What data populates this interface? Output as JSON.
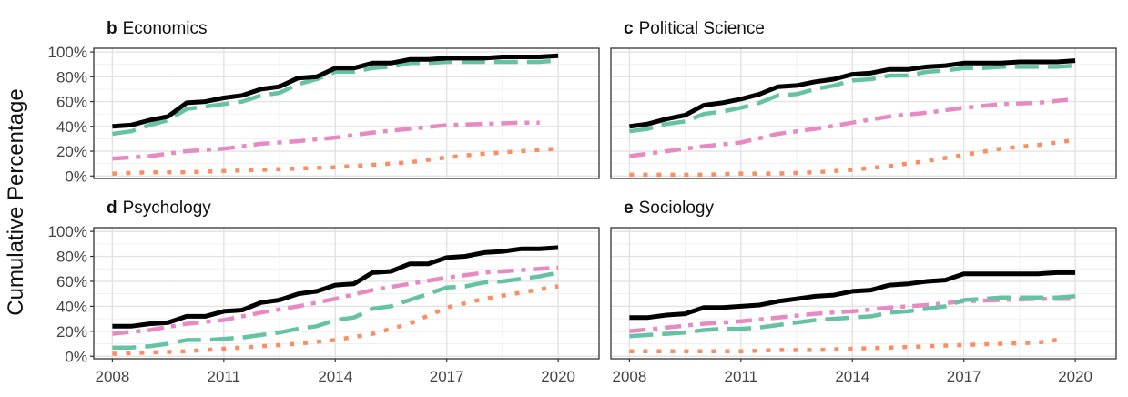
{
  "figure": {
    "ylabel": "Cumulative Percentage"
  },
  "series_styles": [
    {
      "key": "s1",
      "color": "#000000",
      "dash": "none"
    },
    {
      "key": "s2",
      "color": "#66c2a5",
      "dash": "26 10"
    },
    {
      "key": "s3",
      "color": "#e78ac3",
      "dash": "18 8 5 8"
    },
    {
      "key": "s4",
      "color": "#fc8d62",
      "dash": "5 10"
    }
  ],
  "chart_data": [
    {
      "type": "line",
      "letter": "b",
      "title": "Economics",
      "xlim": [
        2007.5,
        2021.1
      ],
      "ylim": [
        -2,
        103
      ],
      "xticks": [
        2008,
        2011,
        2014,
        2017,
        2020
      ],
      "xtick_labels": [
        "2008",
        "2011",
        "2014",
        "2017",
        "2020"
      ],
      "yticks": [
        0,
        20,
        40,
        60,
        80,
        100
      ],
      "ytick_labels": [
        "0%",
        "20%",
        "40%",
        "60%",
        "80%",
        "100%"
      ],
      "series": [
        {
          "x": [
            2008,
            2008.5,
            2009,
            2009.5,
            2010,
            2010.5,
            2011,
            2011.5,
            2012,
            2012.5,
            2013,
            2013.5,
            2014,
            2014.5,
            2015,
            2015.5,
            2016,
            2016.5,
            2017,
            2017.5,
            2018,
            2018.5,
            2019,
            2019.5,
            2020
          ],
          "y": [
            40,
            41,
            45,
            48,
            59,
            60,
            63,
            65,
            70,
            72,
            79,
            80,
            87,
            87,
            91,
            91,
            94,
            94,
            95,
            95,
            95,
            96,
            96,
            96,
            97
          ]
        },
        {
          "x": [
            2008,
            2008.5,
            2009,
            2009.5,
            2010,
            2010.5,
            2011,
            2011.5,
            2012,
            2012.5,
            2013,
            2013.5,
            2014,
            2014.5,
            2015,
            2015.5,
            2016,
            2016.5,
            2017,
            2017.5,
            2018,
            2018.5,
            2019,
            2019.5,
            2020
          ],
          "y": [
            34,
            36,
            41,
            45,
            54,
            56,
            58,
            60,
            65,
            67,
            74,
            78,
            84,
            84,
            87,
            88,
            91,
            91,
            92,
            92,
            92,
            92,
            92,
            92,
            93
          ]
        },
        {
          "x": [
            2008,
            2009,
            2010,
            2011,
            2012,
            2013,
            2014,
            2015,
            2016,
            2017,
            2018,
            2019,
            2019.5
          ],
          "y": [
            14,
            16,
            20,
            22,
            26,
            28,
            31,
            35,
            38,
            41,
            42,
            43,
            43
          ]
        },
        {
          "x": [
            2008,
            2009,
            2010,
            2011,
            2012,
            2013,
            2014,
            2015,
            2016,
            2017,
            2018,
            2019,
            2020
          ],
          "y": [
            2,
            3,
            3,
            4,
            5,
            6,
            7,
            9,
            11,
            15,
            18,
            20,
            22
          ]
        }
      ]
    },
    {
      "type": "line",
      "letter": "c",
      "title": "Political Science",
      "xlim": [
        2007.5,
        2021.1
      ],
      "ylim": [
        -2,
        103
      ],
      "xticks": [
        2008,
        2011,
        2014,
        2017,
        2020
      ],
      "xtick_labels": [
        "2008",
        "2011",
        "2014",
        "2017",
        "2020"
      ],
      "yticks": [
        0,
        20,
        40,
        60,
        80,
        100
      ],
      "ytick_labels": [
        "0%",
        "20%",
        "40%",
        "60%",
        "80%",
        "100%"
      ],
      "series": [
        {
          "x": [
            2008,
            2008.5,
            2009,
            2009.5,
            2010,
            2010.5,
            2011,
            2011.5,
            2012,
            2012.5,
            2013,
            2013.5,
            2014,
            2014.5,
            2015,
            2015.5,
            2016,
            2016.5,
            2017,
            2017.5,
            2018,
            2018.5,
            2019,
            2019.5,
            2020
          ],
          "y": [
            40,
            42,
            46,
            49,
            57,
            59,
            62,
            66,
            72,
            73,
            76,
            78,
            82,
            83,
            86,
            86,
            88,
            89,
            91,
            91,
            91,
            92,
            92,
            92,
            93
          ]
        },
        {
          "x": [
            2008,
            2008.5,
            2009,
            2009.5,
            2010,
            2010.5,
            2011,
            2011.5,
            2012,
            2012.5,
            2013,
            2013.5,
            2014,
            2014.5,
            2015,
            2015.5,
            2016,
            2016.5,
            2017,
            2017.5,
            2018,
            2018.5,
            2019,
            2019.5,
            2020
          ],
          "y": [
            36,
            38,
            42,
            44,
            50,
            52,
            55,
            59,
            65,
            66,
            70,
            73,
            77,
            78,
            81,
            81,
            84,
            85,
            87,
            87,
            88,
            88,
            88,
            88,
            89
          ]
        },
        {
          "x": [
            2008,
            2009,
            2010,
            2011,
            2012,
            2013,
            2014,
            2015,
            2016,
            2017,
            2018,
            2019,
            2020
          ],
          "y": [
            16,
            20,
            24,
            27,
            34,
            38,
            43,
            48,
            51,
            55,
            58,
            59,
            62
          ]
        },
        {
          "x": [
            2008,
            2009,
            2010,
            2011,
            2012,
            2013,
            2014,
            2015,
            2016,
            2017,
            2018,
            2019,
            2020
          ],
          "y": [
            1,
            1,
            1,
            2,
            2,
            3,
            5,
            8,
            12,
            17,
            22,
            25,
            29
          ]
        }
      ]
    },
    {
      "type": "line",
      "letter": "d",
      "title": "Psychology",
      "xlim": [
        2007.5,
        2021.1
      ],
      "ylim": [
        -2,
        103
      ],
      "xticks": [
        2008,
        2011,
        2014,
        2017,
        2020
      ],
      "xtick_labels": [
        "2008",
        "2011",
        "2014",
        "2017",
        "2020"
      ],
      "yticks": [
        0,
        20,
        40,
        60,
        80,
        100
      ],
      "ytick_labels": [
        "0%",
        "20%",
        "40%",
        "60%",
        "80%",
        "100%"
      ],
      "series": [
        {
          "x": [
            2008,
            2008.5,
            2009,
            2009.5,
            2010,
            2010.5,
            2011,
            2011.5,
            2012,
            2012.5,
            2013,
            2013.5,
            2014,
            2014.5,
            2015,
            2015.5,
            2016,
            2016.5,
            2017,
            2017.5,
            2018,
            2018.5,
            2019,
            2019.5,
            2020
          ],
          "y": [
            24,
            24,
            26,
            27,
            32,
            32,
            36,
            37,
            43,
            45,
            50,
            52,
            57,
            58,
            67,
            68,
            74,
            74,
            79,
            80,
            83,
            84,
            86,
            86,
            87
          ]
        },
        {
          "x": [
            2008,
            2008.5,
            2009,
            2009.5,
            2010,
            2010.5,
            2011,
            2011.5,
            2012,
            2012.5,
            2013,
            2013.5,
            2014,
            2014.5,
            2015,
            2015.5,
            2016,
            2016.5,
            2017,
            2017.5,
            2018,
            2018.5,
            2019,
            2019.5,
            2020
          ],
          "y": [
            7,
            7,
            8,
            10,
            13,
            13,
            14,
            15,
            17,
            19,
            22,
            24,
            29,
            31,
            38,
            40,
            45,
            50,
            55,
            56,
            59,
            60,
            62,
            64,
            67
          ]
        },
        {
          "x": [
            2008,
            2009,
            2010,
            2011,
            2012,
            2013,
            2014,
            2015,
            2016,
            2017,
            2018,
            2019,
            2020
          ],
          "y": [
            18,
            21,
            26,
            29,
            35,
            40,
            46,
            53,
            58,
            63,
            67,
            69,
            71
          ]
        },
        {
          "x": [
            2008,
            2009,
            2010,
            2011,
            2012,
            2013,
            2014,
            2015,
            2016,
            2017,
            2018,
            2019,
            2020
          ],
          "y": [
            2,
            3,
            4,
            6,
            8,
            10,
            13,
            18,
            26,
            39,
            46,
            51,
            56
          ]
        }
      ]
    },
    {
      "type": "line",
      "letter": "e",
      "title": "Sociology",
      "xlim": [
        2007.5,
        2021.1
      ],
      "ylim": [
        -2,
        103
      ],
      "xticks": [
        2008,
        2011,
        2014,
        2017,
        2020
      ],
      "xtick_labels": [
        "2008",
        "2011",
        "2014",
        "2017",
        "2020"
      ],
      "yticks": [
        0,
        20,
        40,
        60,
        80,
        100
      ],
      "ytick_labels": [
        "0%",
        "20%",
        "40%",
        "60%",
        "80%",
        "100%"
      ],
      "series": [
        {
          "x": [
            2008,
            2008.5,
            2009,
            2009.5,
            2010,
            2010.5,
            2011,
            2011.5,
            2012,
            2012.5,
            2013,
            2013.5,
            2014,
            2014.5,
            2015,
            2015.5,
            2016,
            2016.5,
            2017,
            2017.5,
            2018,
            2018.5,
            2019,
            2019.5,
            2020
          ],
          "y": [
            31,
            31,
            33,
            34,
            39,
            39,
            40,
            41,
            44,
            46,
            48,
            49,
            52,
            53,
            57,
            58,
            60,
            61,
            66,
            66,
            66,
            66,
            66,
            67,
            67
          ]
        },
        {
          "x": [
            2008,
            2008.5,
            2009,
            2009.5,
            2010,
            2010.5,
            2011,
            2011.5,
            2012,
            2012.5,
            2013,
            2013.5,
            2014,
            2014.5,
            2015,
            2015.5,
            2016,
            2016.5,
            2017,
            2017.5,
            2018,
            2018.5,
            2019,
            2019.5,
            2020
          ],
          "y": [
            16,
            17,
            18,
            19,
            21,
            22,
            22,
            23,
            25,
            27,
            29,
            30,
            31,
            32,
            35,
            36,
            38,
            40,
            45,
            46,
            47,
            47,
            47,
            47,
            48
          ]
        },
        {
          "x": [
            2008,
            2009,
            2010,
            2011,
            2012,
            2013,
            2014,
            2015,
            2016,
            2017,
            2018,
            2019,
            2020
          ],
          "y": [
            20,
            23,
            26,
            28,
            31,
            34,
            36,
            39,
            41,
            44,
            45,
            46,
            46
          ]
        },
        {
          "x": [
            2008,
            2009,
            2010,
            2011,
            2012,
            2013,
            2014,
            2015,
            2016,
            2017,
            2018,
            2019,
            2019.5
          ],
          "y": [
            4,
            4,
            4,
            4,
            5,
            5,
            6,
            7,
            8,
            9,
            10,
            11,
            13
          ]
        }
      ]
    }
  ]
}
